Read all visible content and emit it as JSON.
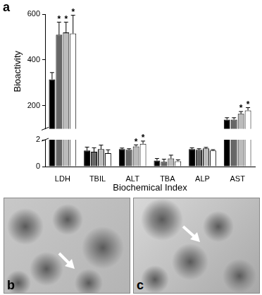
{
  "chart_data": {
    "type": "bar",
    "panel_label": "a",
    "x_label": "Biochemical Index",
    "y_label": "Bioactivity",
    "categories": [
      "LDH",
      "TBIL",
      "ALT",
      "TBA",
      "ALP",
      "AST"
    ],
    "ylim": [
      0,
      600
    ],
    "yticks": [
      0,
      2,
      200,
      400,
      600
    ],
    "y_break": [
      2,
      100
    ],
    "grid": false,
    "series": [
      {
        "color": "#000000",
        "values": [
          315,
          1.2,
          1.3,
          0.45,
          1.3,
          140
        ],
        "errors": [
          30,
          0.25,
          0.08,
          0.15,
          0.1,
          8
        ],
        "annotations": [
          null,
          null,
          null,
          null,
          null,
          null
        ]
      },
      {
        "color": "#666666",
        "values": [
          510,
          1.1,
          1.25,
          0.35,
          1.25,
          140
        ],
        "errors": [
          55,
          0.3,
          0.08,
          0.2,
          0.08,
          8
        ],
        "annotations": [
          "*",
          null,
          null,
          null,
          null,
          null
        ]
      },
      {
        "color": "#bbbbbb",
        "values": [
          520,
          1.3,
          1.5,
          0.6,
          1.35,
          165
        ],
        "errors": [
          45,
          0.3,
          0.12,
          0.25,
          0.08,
          10
        ],
        "annotations": [
          "*",
          null,
          "*",
          null,
          null,
          "*"
        ]
      },
      {
        "color": "#ffffff",
        "values": [
          515,
          1.0,
          1.7,
          0.4,
          1.2,
          180
        ],
        "errors": [
          80,
          0.25,
          0.2,
          0.1,
          0.06,
          12
        ],
        "annotations": [
          "*",
          null,
          "*",
          null,
          null,
          "*"
        ]
      }
    ]
  },
  "panels": [
    {
      "label": "b"
    },
    {
      "label": "c"
    }
  ]
}
